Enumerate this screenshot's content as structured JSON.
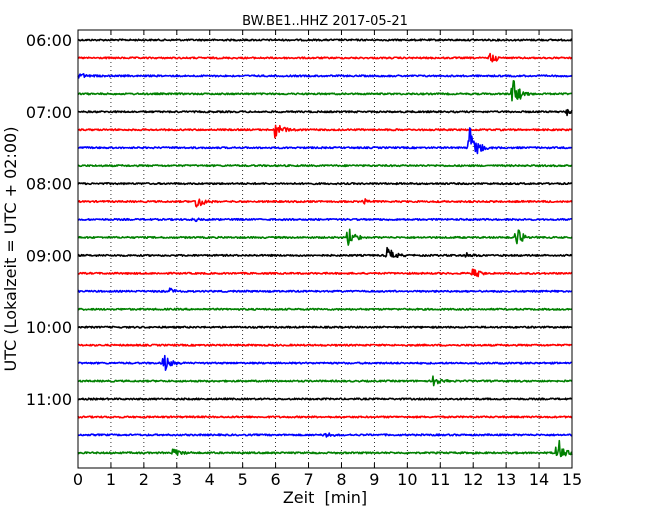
{
  "chart_data": {
    "type": "line",
    "title": "BW.BE1..HHZ 2017-05-21",
    "xlabel": "Zeit  [min]",
    "ylabel": "UTC (Lokalzeit = UTC + 02:00)",
    "xlim": [
      0,
      15
    ],
    "x_ticks": [
      "0",
      "1",
      "2",
      "3",
      "4",
      "5",
      "6",
      "7",
      "8",
      "9",
      "10",
      "11",
      "12",
      "13",
      "14",
      "15"
    ],
    "y_ticks": [
      "06:00",
      "07:00",
      "08:00",
      "09:00",
      "10:00",
      "11:00"
    ],
    "trace_interval_min": 15,
    "grid": "vertical-dotted",
    "colors": [
      "#000000",
      "#ff0000",
      "#0000ff",
      "#008000"
    ],
    "traces": [
      {
        "start": "06:00",
        "color": "#000000",
        "events": []
      },
      {
        "start": "06:15",
        "color": "#ff0000",
        "events": [
          {
            "t": 12.5,
            "amp": 0.6
          }
        ]
      },
      {
        "start": "06:30",
        "color": "#0000ff",
        "events": [
          {
            "t": 0.05,
            "amp": 0.3
          }
        ]
      },
      {
        "start": "06:45",
        "color": "#008000",
        "events": [
          {
            "t": 13.2,
            "amp": 1.4
          }
        ]
      },
      {
        "start": "07:00",
        "color": "#000000",
        "events": [
          {
            "t": 14.85,
            "amp": 0.35
          }
        ]
      },
      {
        "start": "07:15",
        "color": "#ff0000",
        "events": [
          {
            "t": 6.0,
            "amp": 1.0
          }
        ]
      },
      {
        "start": "07:30",
        "color": "#0000ff",
        "events": [
          {
            "t": 11.9,
            "amp": 2.2
          }
        ]
      },
      {
        "start": "07:45",
        "color": "#008000",
        "events": []
      },
      {
        "start": "08:00",
        "color": "#000000",
        "events": []
      },
      {
        "start": "08:15",
        "color": "#ff0000",
        "events": [
          {
            "t": 3.6,
            "amp": 0.7
          },
          {
            "t": 8.7,
            "amp": 0.2
          }
        ]
      },
      {
        "start": "08:30",
        "color": "#0000ff",
        "events": [
          {
            "t": 3.5,
            "amp": 0.2
          }
        ]
      },
      {
        "start": "08:45",
        "color": "#008000",
        "events": [
          {
            "t": 8.2,
            "amp": 0.9
          },
          {
            "t": 13.3,
            "amp": 0.9
          }
        ]
      },
      {
        "start": "09:00",
        "color": "#000000",
        "events": [
          {
            "t": 9.4,
            "amp": 0.7
          },
          {
            "t": 11.8,
            "amp": 0.3
          }
        ]
      },
      {
        "start": "09:15",
        "color": "#ff0000",
        "events": [
          {
            "t": 12.0,
            "amp": 0.5
          }
        ]
      },
      {
        "start": "09:30",
        "color": "#0000ff",
        "events": [
          {
            "t": 2.8,
            "amp": 0.3
          }
        ]
      },
      {
        "start": "09:45",
        "color": "#008000",
        "events": []
      },
      {
        "start": "10:00",
        "color": "#000000",
        "events": []
      },
      {
        "start": "10:15",
        "color": "#ff0000",
        "events": []
      },
      {
        "start": "10:30",
        "color": "#0000ff",
        "events": [
          {
            "t": 2.6,
            "amp": 0.8
          }
        ]
      },
      {
        "start": "10:45",
        "color": "#008000",
        "events": [
          {
            "t": 10.8,
            "amp": 0.5
          }
        ]
      },
      {
        "start": "11:00",
        "color": "#000000",
        "events": []
      },
      {
        "start": "11:15",
        "color": "#ff0000",
        "events": []
      },
      {
        "start": "11:30",
        "color": "#0000ff",
        "events": [
          {
            "t": 7.5,
            "amp": 0.3
          }
        ]
      },
      {
        "start": "11:45",
        "color": "#008000",
        "events": [
          {
            "t": 2.9,
            "amp": 0.5
          },
          {
            "t": 14.55,
            "amp": 1.6
          }
        ]
      }
    ]
  }
}
